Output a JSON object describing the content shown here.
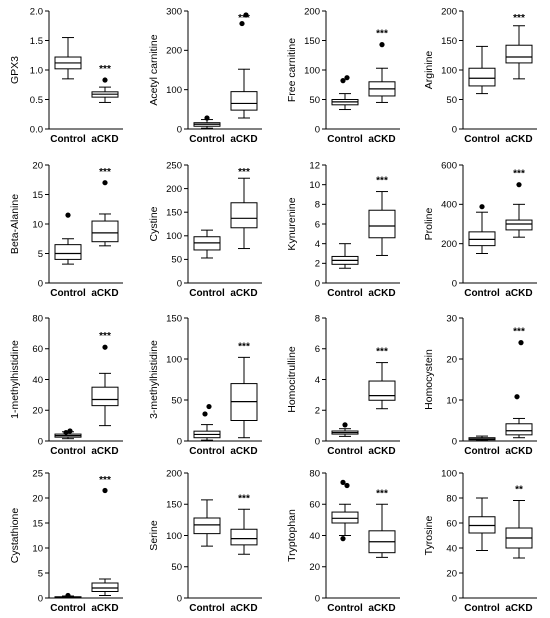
{
  "chart_data": [
    {
      "type": "box",
      "ylabel": "GPX3",
      "yticks": [
        "0.0",
        "0.5",
        "1.0",
        "1.5",
        "2.0"
      ],
      "ylim": [
        0,
        2
      ],
      "categories": [
        "Control",
        "aCKD"
      ],
      "groups": [
        {
          "name": "Control",
          "min": 0.85,
          "q1": 1.02,
          "median": 1.12,
          "q3": 1.22,
          "max": 1.55,
          "outliers": []
        },
        {
          "name": "aCKD",
          "min": 0.45,
          "q1": 0.54,
          "median": 0.59,
          "q3": 0.63,
          "max": 0.71,
          "outliers": [
            0.83
          ]
        }
      ],
      "significance": "***"
    },
    {
      "type": "box",
      "ylabel": "Acetyl carnitine",
      "yticks": [
        "0",
        "100",
        "200",
        "300"
      ],
      "ylim": [
        0,
        300
      ],
      "categories": [
        "Control",
        "aCKD"
      ],
      "groups": [
        {
          "name": "Control",
          "min": 2,
          "q1": 7,
          "median": 12,
          "q3": 16,
          "max": 24,
          "outliers": [
            28
          ]
        },
        {
          "name": "aCKD",
          "min": 28,
          "q1": 48,
          "median": 65,
          "q3": 95,
          "max": 152,
          "outliers": [
            268,
            290
          ]
        }
      ],
      "significance": "***"
    },
    {
      "type": "box",
      "ylabel": "Free carnitine",
      "yticks": [
        "0",
        "50",
        "100",
        "150",
        "200"
      ],
      "ylim": [
        0,
        200
      ],
      "categories": [
        "Control",
        "aCKD"
      ],
      "groups": [
        {
          "name": "Control",
          "min": 33,
          "q1": 41,
          "median": 46,
          "q3": 50,
          "max": 60,
          "outliers": [
            82,
            87
          ]
        },
        {
          "name": "aCKD",
          "min": 45,
          "q1": 56,
          "median": 68,
          "q3": 80,
          "max": 103,
          "outliers": [
            143
          ]
        }
      ],
      "significance": "***"
    },
    {
      "type": "box",
      "ylabel": "Arginine",
      "yticks": [
        "0",
        "50",
        "100",
        "150",
        "200"
      ],
      "ylim": [
        0,
        200
      ],
      "categories": [
        "Control",
        "aCKD"
      ],
      "groups": [
        {
          "name": "Control",
          "min": 60,
          "q1": 73,
          "median": 86,
          "q3": 103,
          "max": 140,
          "outliers": []
        },
        {
          "name": "aCKD",
          "min": 85,
          "q1": 112,
          "median": 122,
          "q3": 142,
          "max": 175,
          "outliers": []
        }
      ],
      "significance": "***"
    },
    {
      "type": "box",
      "ylabel": "Beta-Alanine",
      "yticks": [
        "0",
        "5",
        "10",
        "15",
        "20"
      ],
      "ylim": [
        0,
        20
      ],
      "categories": [
        "Control",
        "aCKD"
      ],
      "groups": [
        {
          "name": "Control",
          "min": 3.2,
          "q1": 4,
          "median": 5,
          "q3": 6.5,
          "max": 7.5,
          "outliers": [
            11.5
          ]
        },
        {
          "name": "aCKD",
          "min": 6.3,
          "q1": 7,
          "median": 8.5,
          "q3": 10.5,
          "max": 11.7,
          "outliers": [
            17
          ]
        }
      ],
      "significance": "***"
    },
    {
      "type": "box",
      "ylabel": "Cystine",
      "yticks": [
        "0",
        "50",
        "100",
        "150",
        "200",
        "250"
      ],
      "ylim": [
        0,
        250
      ],
      "categories": [
        "Control",
        "aCKD"
      ],
      "groups": [
        {
          "name": "Control",
          "min": 53,
          "q1": 70,
          "median": 85,
          "q3": 98,
          "max": 112,
          "outliers": []
        },
        {
          "name": "aCKD",
          "min": 73,
          "q1": 117,
          "median": 137,
          "q3": 170,
          "max": 222,
          "outliers": []
        }
      ],
      "significance": "***"
    },
    {
      "type": "box",
      "ylabel": "Kynurenine",
      "yticks": [
        "0",
        "2",
        "4",
        "6",
        "8",
        "10",
        "12"
      ],
      "ylim": [
        0,
        12
      ],
      "categories": [
        "Control",
        "aCKD"
      ],
      "groups": [
        {
          "name": "Control",
          "min": 1.5,
          "q1": 1.9,
          "median": 2.3,
          "q3": 2.7,
          "max": 4,
          "outliers": []
        },
        {
          "name": "aCKD",
          "min": 2.8,
          "q1": 4.6,
          "median": 5.8,
          "q3": 7.4,
          "max": 9.3,
          "outliers": []
        }
      ],
      "significance": "***"
    },
    {
      "type": "box",
      "ylabel": "Proline",
      "yticks": [
        "0",
        "200",
        "400",
        "600"
      ],
      "ylim": [
        0,
        600
      ],
      "categories": [
        "Control",
        "aCKD"
      ],
      "groups": [
        {
          "name": "Control",
          "min": 150,
          "q1": 190,
          "median": 222,
          "q3": 260,
          "max": 360,
          "outliers": [
            388
          ]
        },
        {
          "name": "aCKD",
          "min": 233,
          "q1": 270,
          "median": 300,
          "q3": 320,
          "max": 400,
          "outliers": [
            500
          ]
        }
      ],
      "significance": "***"
    },
    {
      "type": "box",
      "ylabel": "1-methylhistidine",
      "yticks": [
        "0",
        "20",
        "40",
        "60",
        "80"
      ],
      "ylim": [
        0,
        80
      ],
      "categories": [
        "Control",
        "aCKD"
      ],
      "groups": [
        {
          "name": "Control",
          "min": 1.5,
          "q1": 2.5,
          "median": 3.5,
          "q3": 4.5,
          "max": 6,
          "outliers": [
            5.5,
            6.5
          ]
        },
        {
          "name": "aCKD",
          "min": 10,
          "q1": 23,
          "median": 27,
          "q3": 35,
          "max": 44,
          "outliers": [
            61
          ]
        }
      ],
      "significance": "***"
    },
    {
      "type": "box",
      "ylabel": "3-methylhistidine",
      "yticks": [
        "0",
        "50",
        "100",
        "150"
      ],
      "ylim": [
        0,
        150
      ],
      "categories": [
        "Control",
        "aCKD"
      ],
      "groups": [
        {
          "name": "Control",
          "min": 1,
          "q1": 4,
          "median": 8,
          "q3": 12,
          "max": 20,
          "outliers": [
            33,
            42
          ]
        },
        {
          "name": "aCKD",
          "min": 4,
          "q1": 25,
          "median": 48,
          "q3": 70,
          "max": 102,
          "outliers": []
        }
      ],
      "significance": "***"
    },
    {
      "type": "box",
      "ylabel": "Homocitrulline",
      "yticks": [
        "0",
        "2",
        "4",
        "6",
        "8"
      ],
      "ylim": [
        0,
        8
      ],
      "categories": [
        "Control",
        "aCKD"
      ],
      "groups": [
        {
          "name": "Control",
          "min": 0.3,
          "q1": 0.45,
          "median": 0.55,
          "q3": 0.65,
          "max": 0.8,
          "outliers": [
            1.05
          ]
        },
        {
          "name": "aCKD",
          "min": 2.1,
          "q1": 2.65,
          "median": 2.95,
          "q3": 3.9,
          "max": 5.1,
          "outliers": []
        }
      ],
      "significance": "***"
    },
    {
      "type": "box",
      "ylabel": "Homocystein",
      "yticks": [
        "0",
        "10",
        "20",
        "30"
      ],
      "ylim": [
        0,
        30
      ],
      "categories": [
        "Control",
        "aCKD"
      ],
      "groups": [
        {
          "name": "Control",
          "min": 0.1,
          "q1": 0.3,
          "median": 0.5,
          "q3": 0.8,
          "max": 1.2,
          "outliers": []
        },
        {
          "name": "aCKD",
          "min": 0.8,
          "q1": 1.5,
          "median": 2.5,
          "q3": 4.2,
          "max": 5.5,
          "outliers": [
            10.8,
            24
          ]
        }
      ],
      "significance": "***"
    },
    {
      "type": "box",
      "ylabel": "Cystathione",
      "yticks": [
        "0",
        "5",
        "10",
        "15",
        "20",
        "25"
      ],
      "ylim": [
        0,
        25
      ],
      "categories": [
        "Control",
        "aCKD"
      ],
      "groups": [
        {
          "name": "Control",
          "min": 0.05,
          "q1": 0.1,
          "median": 0.15,
          "q3": 0.25,
          "max": 0.4,
          "outliers": [
            0.5
          ]
        },
        {
          "name": "aCKD",
          "min": 0.5,
          "q1": 1.3,
          "median": 2,
          "q3": 3,
          "max": 3.8,
          "outliers": [
            21.5
          ]
        }
      ],
      "significance": "***"
    },
    {
      "type": "box",
      "ylabel": "Serine",
      "yticks": [
        "0",
        "50",
        "100",
        "150",
        "200"
      ],
      "ylim": [
        0,
        200
      ],
      "categories": [
        "Control",
        "aCKD"
      ],
      "groups": [
        {
          "name": "Control",
          "min": 83,
          "q1": 103,
          "median": 117,
          "q3": 128,
          "max": 157,
          "outliers": []
        },
        {
          "name": "aCKD",
          "min": 70,
          "q1": 85,
          "median": 95,
          "q3": 110,
          "max": 142,
          "outliers": []
        }
      ],
      "significance": "***"
    },
    {
      "type": "box",
      "ylabel": "Tryptophan",
      "yticks": [
        "0",
        "20",
        "40",
        "60",
        "80"
      ],
      "ylim": [
        0,
        80
      ],
      "categories": [
        "Control",
        "aCKD"
      ],
      "groups": [
        {
          "name": "Control",
          "min": 40,
          "q1": 48,
          "median": 51,
          "q3": 55,
          "max": 60,
          "outliers": [
            38,
            72,
            74
          ]
        },
        {
          "name": "aCKD",
          "min": 26,
          "q1": 29,
          "median": 36,
          "q3": 43,
          "max": 60,
          "outliers": []
        }
      ],
      "significance": "***"
    },
    {
      "type": "box",
      "ylabel": "Tyrosine",
      "yticks": [
        "0",
        "20",
        "40",
        "60",
        "80",
        "100"
      ],
      "ylim": [
        0,
        100
      ],
      "categories": [
        "Control",
        "aCKD"
      ],
      "groups": [
        {
          "name": "Control",
          "min": 38,
          "q1": 52,
          "median": 58,
          "q3": 65,
          "max": 80,
          "outliers": []
        },
        {
          "name": "aCKD",
          "min": 32,
          "q1": 40,
          "median": 48,
          "q3": 56,
          "max": 78,
          "outliers": []
        }
      ],
      "significance": "**"
    }
  ]
}
